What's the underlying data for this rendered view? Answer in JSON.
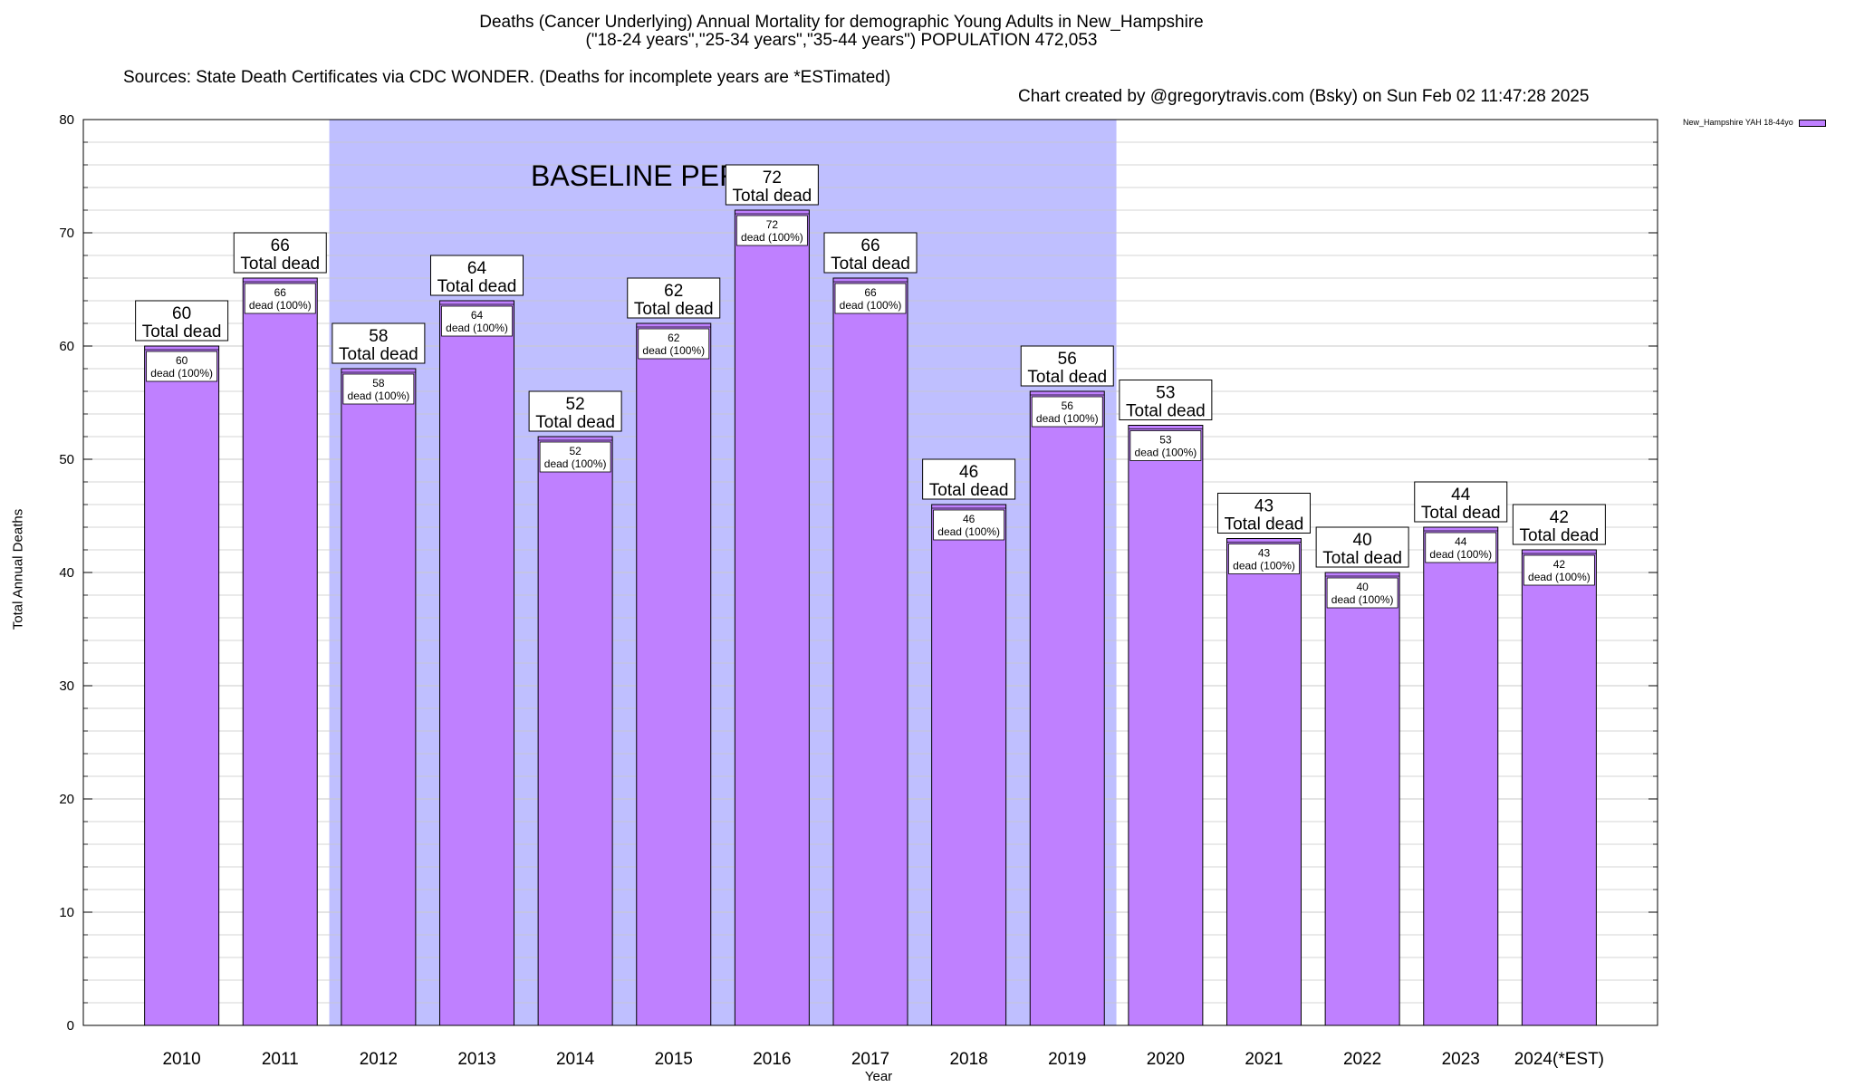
{
  "title_line1": "Deaths (Cancer Underlying) Annual Mortality for demographic Young Adults in New_Hampshire",
  "title_line2": "(\"18-24 years\",\"25-34 years\",\"35-44 years\") POPULATION 472,053",
  "title_source": "Sources: State Death Certificates via CDC WONDER. (Deaths for incomplete years are *ESTimated)",
  "title_credit": "Chart created by @gregorytravis.com (Bsky) on Sun Feb 02 11:47:28 2025",
  "colors": {
    "bar": "#bf80ff",
    "baseline_band": "#bfbfff",
    "grid": "#c8c8c8"
  },
  "chart_data": {
    "type": "bar",
    "categories": [
      "2010",
      "2011",
      "2012",
      "2013",
      "2014",
      "2015",
      "2016",
      "2017",
      "2018",
      "2019",
      "2020",
      "2021",
      "2022",
      "2023",
      "2024(*EST)"
    ],
    "series": [
      {
        "name": "New_Hampshire YAH 18-44yo",
        "values": [
          60,
          66,
          58,
          64,
          52,
          62,
          72,
          66,
          46,
          56,
          53,
          43,
          40,
          44,
          42
        ]
      }
    ],
    "total_label_suffix": "Total dead",
    "inner_label_suffix": "dead (100%)",
    "xlabel": "Year",
    "ylabel": "Total Annual Deaths",
    "ylim": [
      0,
      80
    ],
    "yticks": [
      0,
      10,
      20,
      30,
      40,
      50,
      60,
      70,
      80
    ],
    "grid": true,
    "legend_position": "top-right outside",
    "annotation": {
      "text": "BASELINE PERIOD",
      "from_category": "2012",
      "to_category": "2019"
    }
  }
}
